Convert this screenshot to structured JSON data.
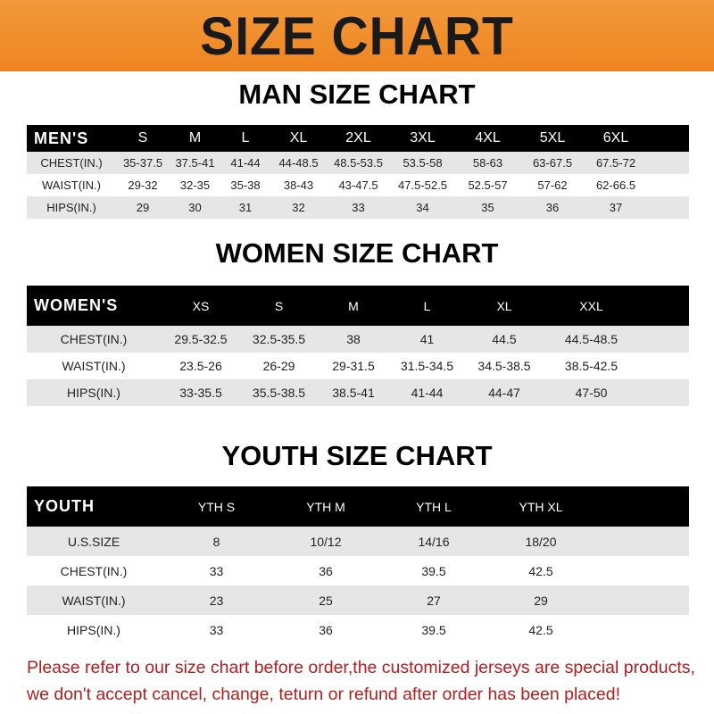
{
  "banner": "SIZE CHART",
  "men": {
    "title": "MAN SIZE CHART",
    "header": [
      "MEN'S",
      "S",
      "M",
      "L",
      "XL",
      "2XL",
      "3XL",
      "4XL",
      "5XL",
      "6XL"
    ],
    "rows": [
      [
        "CHEST(IN.)",
        "35-37.5",
        "37.5-41",
        "41-44",
        "44-48.5",
        "48.5-53.5",
        "53.5-58",
        "58-63",
        "63-67.5",
        "67.5-72"
      ],
      [
        "WAIST(IN.)",
        "29-32",
        "32-35",
        "35-38",
        "38-43",
        "43-47.5",
        "47.5-52.5",
        "52.5-57",
        "57-62",
        "62-66.5"
      ],
      [
        "HIPS(IN.)",
        "29",
        "30",
        "31",
        "32",
        "33",
        "34",
        "35",
        "36",
        "37"
      ]
    ]
  },
  "women": {
    "title": "WOMEN SIZE CHART",
    "header": [
      "WOMEN'S",
      "XS",
      "S",
      "M",
      "L",
      "XL",
      "XXL"
    ],
    "rows": [
      [
        "CHEST(IN.)",
        "29.5-32.5",
        "32.5-35.5",
        "38",
        "41",
        "44.5",
        "44.5-48.5"
      ],
      [
        "WAIST(IN.)",
        "23.5-26",
        "26-29",
        "29-31.5",
        "31.5-34.5",
        "34.5-38.5",
        "38.5-42.5"
      ],
      [
        "HIPS(IN.)",
        "33-35.5",
        "35.5-38.5",
        "38.5-41",
        "41-44",
        "44-47",
        "47-50"
      ]
    ]
  },
  "youth": {
    "title": "YOUTH SIZE CHART",
    "header": [
      "YOUTH",
      "YTH S",
      "YTH M",
      "YTH L",
      "YTH XL"
    ],
    "rows": [
      [
        "U.S.SIZE",
        "8",
        "10/12",
        "14/16",
        "18/20"
      ],
      [
        "CHEST(IN.)",
        "33",
        "36",
        "39.5",
        "42.5"
      ],
      [
        "WAIST(IN.)",
        "23",
        "25",
        "27",
        "29"
      ],
      [
        "HIPS(IN.)",
        "33",
        "36",
        "39.5",
        "42.5"
      ]
    ]
  },
  "note": [
    "Please refer to our size chart before order,the customized jerseys are special products,",
    "we don't accept cancel, change, teturn or refund after order has been placed!"
  ],
  "colors": {
    "banner": "#ee8420",
    "header_row": "#000000",
    "stripe": "#e6e6e6",
    "note": "#b02020"
  }
}
